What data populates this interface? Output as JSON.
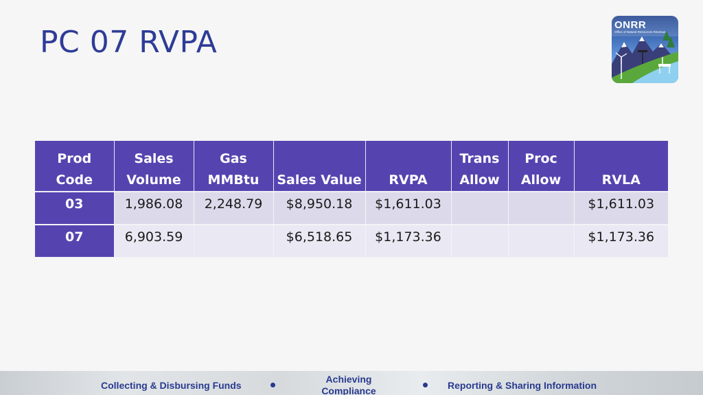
{
  "slide": {
    "title": "PC 07 RVPA"
  },
  "logo": {
    "name": "ONRR",
    "subtitle": "Office of Natural Resources Revenue"
  },
  "table": {
    "headers": [
      {
        "line1": "Prod",
        "line2": "Code"
      },
      {
        "line1": "Sales",
        "line2": "Volume"
      },
      {
        "line1": "Gas",
        "line2": "MMBtu"
      },
      {
        "line1": "",
        "line2": "Sales Value"
      },
      {
        "line1": "",
        "line2": "RVPA"
      },
      {
        "line1": "Trans",
        "line2": "Allow"
      },
      {
        "line1": "Proc",
        "line2": "Allow"
      },
      {
        "line1": "",
        "line2": "RVLA"
      }
    ],
    "rows": [
      [
        "03",
        "1,986.08",
        "2,248.79",
        "$8,950.18",
        "$1,611.03",
        "",
        "",
        "$1,611.03"
      ],
      [
        "07",
        "6,903.59",
        "",
        "$6,518.65",
        "$1,173.36",
        "",
        "",
        "$1,173.36"
      ]
    ]
  },
  "footer": {
    "left": "Collecting & Disbursing Funds",
    "middle_line1": "Achieving",
    "middle_line2": "Compliance",
    "right": "Reporting & Sharing Information"
  },
  "colors": {
    "title": "#2e3c96",
    "header_bg": "#5544b0",
    "row_bg": "#dcdaea",
    "footer_text": "#283a8e"
  }
}
